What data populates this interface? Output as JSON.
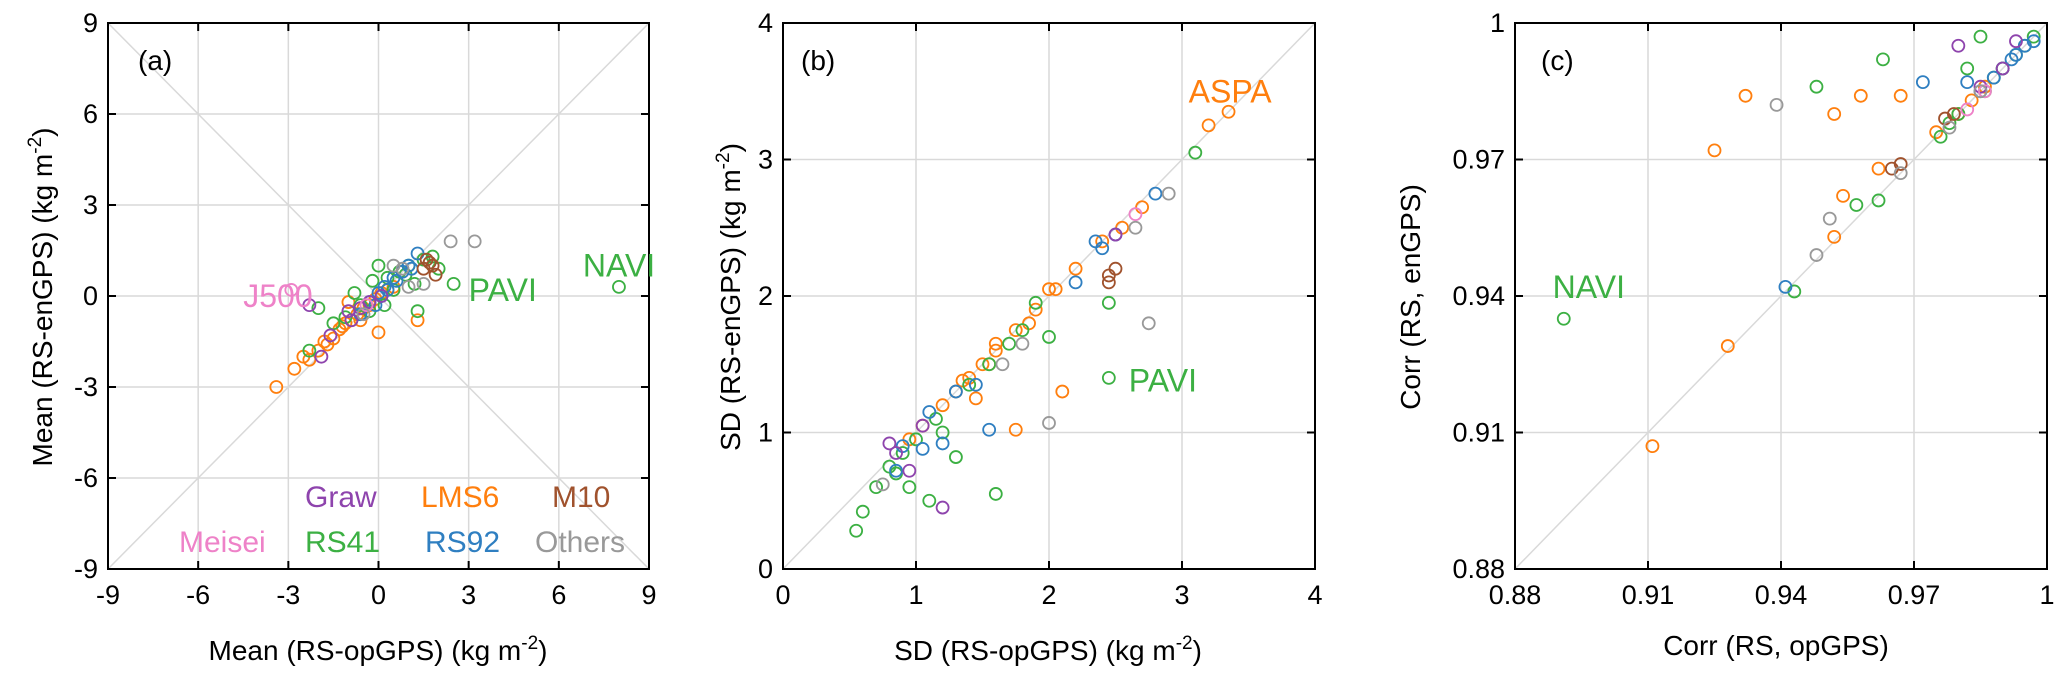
{
  "colors": {
    "Graw": "#8e44ad",
    "LMS6": "#ff7f0e",
    "M10": "#a0522d",
    "Meisei": "#ee82c8",
    "RS41": "#3cb043",
    "RS92": "#2f7fc1",
    "Others": "#999999",
    "grid": "#d9d9d9",
    "axis": "#000000"
  },
  "chart_data": [
    {
      "type": "scatter",
      "panel_label": "(a)",
      "xlabel": "Mean (RS-opGPS) (kg m",
      "xlabel_sup": "-2",
      "xlabel_end": ")",
      "ylabel": "Mean (RS-enGPS) (kg m",
      "ylabel_sup": "-2",
      "ylabel_end": ")",
      "xlim": [
        -9,
        9
      ],
      "ylim": [
        -9,
        9
      ],
      "xticks": [
        -9,
        -6,
        -3,
        0,
        3,
        6,
        9
      ],
      "yticks": [
        -9,
        -6,
        -3,
        0,
        3,
        6,
        9
      ],
      "xtick_labels": [
        "-9",
        "-6",
        "-3",
        "0",
        "3",
        "6",
        "9"
      ],
      "ytick_labels": [
        "-9",
        "-6",
        "-3",
        "0",
        "3",
        "6",
        "9"
      ],
      "reference_lines": [
        "y=x",
        "y=-x"
      ],
      "legend": {
        "placement": "bottom-right",
        "entries": [
          {
            "name": "Graw",
            "color": "#8e44ad"
          },
          {
            "name": "LMS6",
            "color": "#ff7f0e"
          },
          {
            "name": "M10",
            "color": "#a0522d"
          },
          {
            "name": "Meisei",
            "color": "#ee82c8"
          },
          {
            "name": "RS41",
            "color": "#3cb043"
          },
          {
            "name": "RS92",
            "color": "#2f7fc1"
          },
          {
            "name": "Others",
            "color": "#999999"
          }
        ]
      },
      "annotations": [
        {
          "text": "NAVI",
          "color": "#3cb043",
          "x": 6.8,
          "y": 1.0
        },
        {
          "text": "PAVI",
          "color": "#3cb043",
          "x": 3.0,
          "y": 0.2
        },
        {
          "text": "J500",
          "color": "#ee82c8",
          "x": -4.5,
          "y": 0.0
        }
      ],
      "series": [
        {
          "name": "LMS6",
          "color": "#ff7f0e",
          "x": [
            -3.4,
            -2.8,
            -2.3,
            -2.0,
            -1.7,
            -1.5,
            -1.3,
            -1.1,
            -0.9,
            -0.7,
            -0.5,
            -0.3,
            -0.1,
            0.1,
            0.3,
            -1.8,
            -1.2,
            -0.6,
            0.0,
            1.3,
            -2.5,
            -1.0,
            0.5
          ],
          "y": [
            -3.0,
            -2.4,
            -2.1,
            -1.8,
            -1.6,
            -1.4,
            -1.1,
            -0.9,
            -0.8,
            -0.6,
            -0.4,
            -0.3,
            -0.1,
            0.1,
            0.2,
            -1.5,
            -1.0,
            -0.8,
            -1.2,
            -0.8,
            -2.0,
            -0.2,
            0.3
          ]
        },
        {
          "name": "RS41",
          "color": "#3cb043",
          "x": [
            8.0,
            2.5,
            -2.3,
            -2.0,
            -1.1,
            -0.6,
            -0.2,
            0.3,
            0.7,
            1.0,
            1.5,
            1.8,
            -0.3,
            0.5,
            1.2,
            -1.5,
            0.0,
            0.2,
            2.0,
            1.3,
            -0.8,
            0.9
          ],
          "y": [
            0.3,
            0.4,
            -1.8,
            -0.4,
            -0.7,
            -0.3,
            0.5,
            0.6,
            0.8,
            1.0,
            1.2,
            1.3,
            -0.5,
            0.2,
            0.4,
            -0.9,
            1.0,
            -0.3,
            0.9,
            -0.5,
            0.1,
            0.7
          ]
        },
        {
          "name": "RS92",
          "color": "#2f7fc1",
          "x": [
            -0.6,
            -0.3,
            0.0,
            0.2,
            0.5,
            0.8,
            1.0,
            1.3,
            0.3,
            0.6,
            1.1,
            0.1,
            -0.1
          ],
          "y": [
            -0.6,
            -0.2,
            0.1,
            0.3,
            0.6,
            0.8,
            1.0,
            1.4,
            0.2,
            0.5,
            0.9,
            0.0,
            -0.3
          ]
        },
        {
          "name": "Graw",
          "color": "#8e44ad",
          "x": [
            -2.3,
            -1.6,
            -1.0,
            -0.6,
            -0.3,
            0.1,
            -1.9,
            -0.9
          ],
          "y": [
            -0.3,
            -1.3,
            -0.5,
            -0.4,
            -0.2,
            0.0,
            -2.0,
            -0.8
          ]
        },
        {
          "name": "M10",
          "color": "#a0522d",
          "x": [
            1.6,
            1.8,
            1.9,
            1.5,
            1.7
          ],
          "y": [
            1.2,
            1.0,
            0.7,
            0.9,
            1.1
          ]
        },
        {
          "name": "Meisei",
          "color": "#ee82c8",
          "x": [
            -2.9,
            -0.4
          ],
          "y": [
            0.2,
            -0.3
          ]
        },
        {
          "name": "Others",
          "color": "#999999",
          "x": [
            2.4,
            3.2,
            1.5,
            0.5,
            -0.5,
            1.0,
            0.8
          ],
          "y": [
            1.8,
            1.8,
            0.4,
            1.0,
            -0.6,
            0.3,
            0.9
          ]
        }
      ]
    },
    {
      "type": "scatter",
      "panel_label": "(b)",
      "xlabel": "SD (RS-opGPS) (kg m",
      "xlabel_sup": "-2",
      "xlabel_end": ")",
      "ylabel": "SD (RS-enGPS) (kg m",
      "ylabel_sup": "-2",
      "ylabel_end": ")",
      "xlim": [
        0,
        4
      ],
      "ylim": [
        0,
        4
      ],
      "xticks": [
        0,
        1,
        2,
        3,
        4
      ],
      "yticks": [
        0,
        1,
        2,
        3,
        4
      ],
      "xtick_labels": [
        "0",
        "1",
        "2",
        "3",
        "4"
      ],
      "ytick_labels": [
        "0",
        "1",
        "2",
        "3",
        "4"
      ],
      "reference_lines": [
        "y=x"
      ],
      "annotations": [
        {
          "text": "ASPA",
          "color": "#ff7f0e",
          "x": 3.05,
          "y": 3.5
        },
        {
          "text": "PAVI",
          "color": "#3cb043",
          "x": 2.6,
          "y": 1.38
        }
      ],
      "series": [
        {
          "name": "LMS6",
          "color": "#ff7f0e",
          "x": [
            3.35,
            3.2,
            2.7,
            2.55,
            2.4,
            2.2,
            2.05,
            1.9,
            1.75,
            1.6,
            1.5,
            1.4,
            1.3,
            1.2,
            1.05,
            0.95,
            2.1,
            1.75,
            1.55,
            1.85,
            1.6,
            1.35,
            2.0,
            1.45
          ],
          "y": [
            3.35,
            3.25,
            2.65,
            2.5,
            2.4,
            2.2,
            2.05,
            1.9,
            1.75,
            1.6,
            1.5,
            1.4,
            1.3,
            1.2,
            1.05,
            0.95,
            1.3,
            1.02,
            1.5,
            1.8,
            1.65,
            1.38,
            2.05,
            1.25
          ]
        },
        {
          "name": "RS41",
          "color": "#3cb043",
          "x": [
            3.1,
            2.45,
            2.45,
            0.6,
            0.55,
            0.7,
            0.8,
            0.9,
            1.0,
            1.1,
            1.3,
            1.6,
            1.8,
            2.0,
            1.15,
            1.4,
            1.9,
            0.85,
            1.2,
            1.55,
            1.7,
            0.95
          ],
          "y": [
            3.05,
            1.95,
            1.4,
            0.42,
            0.28,
            0.6,
            0.75,
            0.85,
            0.95,
            0.5,
            0.82,
            0.55,
            1.75,
            1.7,
            1.1,
            1.35,
            1.95,
            0.7,
            1.0,
            1.5,
            1.65,
            0.6
          ]
        },
        {
          "name": "RS92",
          "color": "#2f7fc1",
          "x": [
            2.8,
            2.5,
            2.4,
            2.2,
            1.55,
            1.45,
            1.2,
            1.1,
            0.9,
            1.05,
            2.35,
            1.3,
            0.85
          ],
          "y": [
            2.75,
            2.45,
            2.35,
            2.1,
            1.02,
            1.35,
            0.92,
            1.15,
            0.9,
            0.88,
            2.4,
            1.3,
            0.72
          ]
        },
        {
          "name": "Graw",
          "color": "#8e44ad",
          "x": [
            1.2,
            0.95,
            0.85,
            2.5,
            0.8,
            1.05
          ],
          "y": [
            0.45,
            0.72,
            0.85,
            2.45,
            0.92,
            1.05
          ]
        },
        {
          "name": "M10",
          "color": "#a0522d",
          "x": [
            2.45,
            2.5,
            2.45
          ],
          "y": [
            2.1,
            2.2,
            2.15
          ]
        },
        {
          "name": "Meisei",
          "color": "#ee82c8",
          "x": [
            2.65
          ],
          "y": [
            2.6
          ]
        },
        {
          "name": "Others",
          "color": "#999999",
          "x": [
            2.9,
            2.75,
            2.0,
            2.65,
            1.8,
            0.75,
            1.65
          ],
          "y": [
            2.75,
            1.8,
            1.07,
            2.5,
            1.65,
            0.62,
            1.5
          ]
        }
      ]
    },
    {
      "type": "scatter",
      "panel_label": "(c)",
      "xlabel": "Corr (RS, opGPS)",
      "ylabel": "Corr (RS, enGPS)",
      "xlim": [
        0.88,
        1.0
      ],
      "ylim": [
        0.88,
        1.0
      ],
      "xticks": [
        0.88,
        0.91,
        0.94,
        0.97,
        1.0
      ],
      "yticks": [
        0.88,
        0.91,
        0.94,
        0.97,
        1.0
      ],
      "xtick_labels": [
        "0.88",
        "0.91",
        "0.94",
        "0.97",
        "1"
      ],
      "ytick_labels": [
        "0.88",
        "0.91",
        "0.94",
        "0.97",
        "1"
      ],
      "reference_lines": [
        "y=x"
      ],
      "annotations": [
        {
          "text": "NAVI",
          "color": "#3cb043",
          "x": 0.8885,
          "y": 0.942
        }
      ],
      "series": [
        {
          "name": "LMS6",
          "color": "#ff7f0e",
          "x": [
            0.911,
            0.928,
            0.925,
            0.932,
            0.952,
            0.958,
            0.967,
            0.952,
            0.954,
            0.962,
            0.975,
            0.98,
            0.983,
            0.986,
            0.99
          ],
          "y": [
            0.907,
            0.929,
            0.972,
            0.984,
            0.98,
            0.984,
            0.984,
            0.953,
            0.962,
            0.968,
            0.976,
            0.98,
            0.983,
            0.986,
            0.99
          ]
        },
        {
          "name": "RS41",
          "color": "#3cb043",
          "x": [
            0.891,
            0.943,
            0.948,
            0.957,
            0.962,
            0.963,
            0.976,
            0.978,
            0.982,
            0.985,
            0.986,
            0.99,
            0.993,
            0.995,
            0.997,
            0.98,
            0.988
          ],
          "y": [
            0.935,
            0.941,
            0.986,
            0.96,
            0.961,
            0.992,
            0.975,
            0.978,
            0.99,
            0.997,
            0.985,
            0.99,
            0.993,
            0.995,
            0.997,
            0.98,
            0.988
          ]
        },
        {
          "name": "RS92",
          "color": "#2f7fc1",
          "x": [
            0.941,
            0.972,
            0.982,
            0.99,
            0.993,
            0.995,
            0.997,
            0.985,
            0.988,
            0.992
          ],
          "y": [
            0.942,
            0.987,
            0.987,
            0.99,
            0.993,
            0.995,
            0.996,
            0.985,
            0.988,
            0.992
          ]
        },
        {
          "name": "Graw",
          "color": "#8e44ad",
          "x": [
            0.98,
            0.99,
            0.993,
            0.985
          ],
          "y": [
            0.995,
            0.99,
            0.996,
            0.986
          ]
        },
        {
          "name": "M10",
          "color": "#a0522d",
          "x": [
            0.965,
            0.967,
            0.977,
            0.979
          ],
          "y": [
            0.968,
            0.969,
            0.979,
            0.98
          ]
        },
        {
          "name": "Meisei",
          "color": "#ee82c8",
          "x": [
            0.982,
            0.986
          ],
          "y": [
            0.981,
            0.985
          ]
        },
        {
          "name": "Others",
          "color": "#999999",
          "x": [
            0.939,
            0.948,
            0.951,
            0.967,
            0.978,
            0.985
          ],
          "y": [
            0.982,
            0.949,
            0.957,
            0.967,
            0.977,
            0.985
          ]
        }
      ]
    }
  ]
}
